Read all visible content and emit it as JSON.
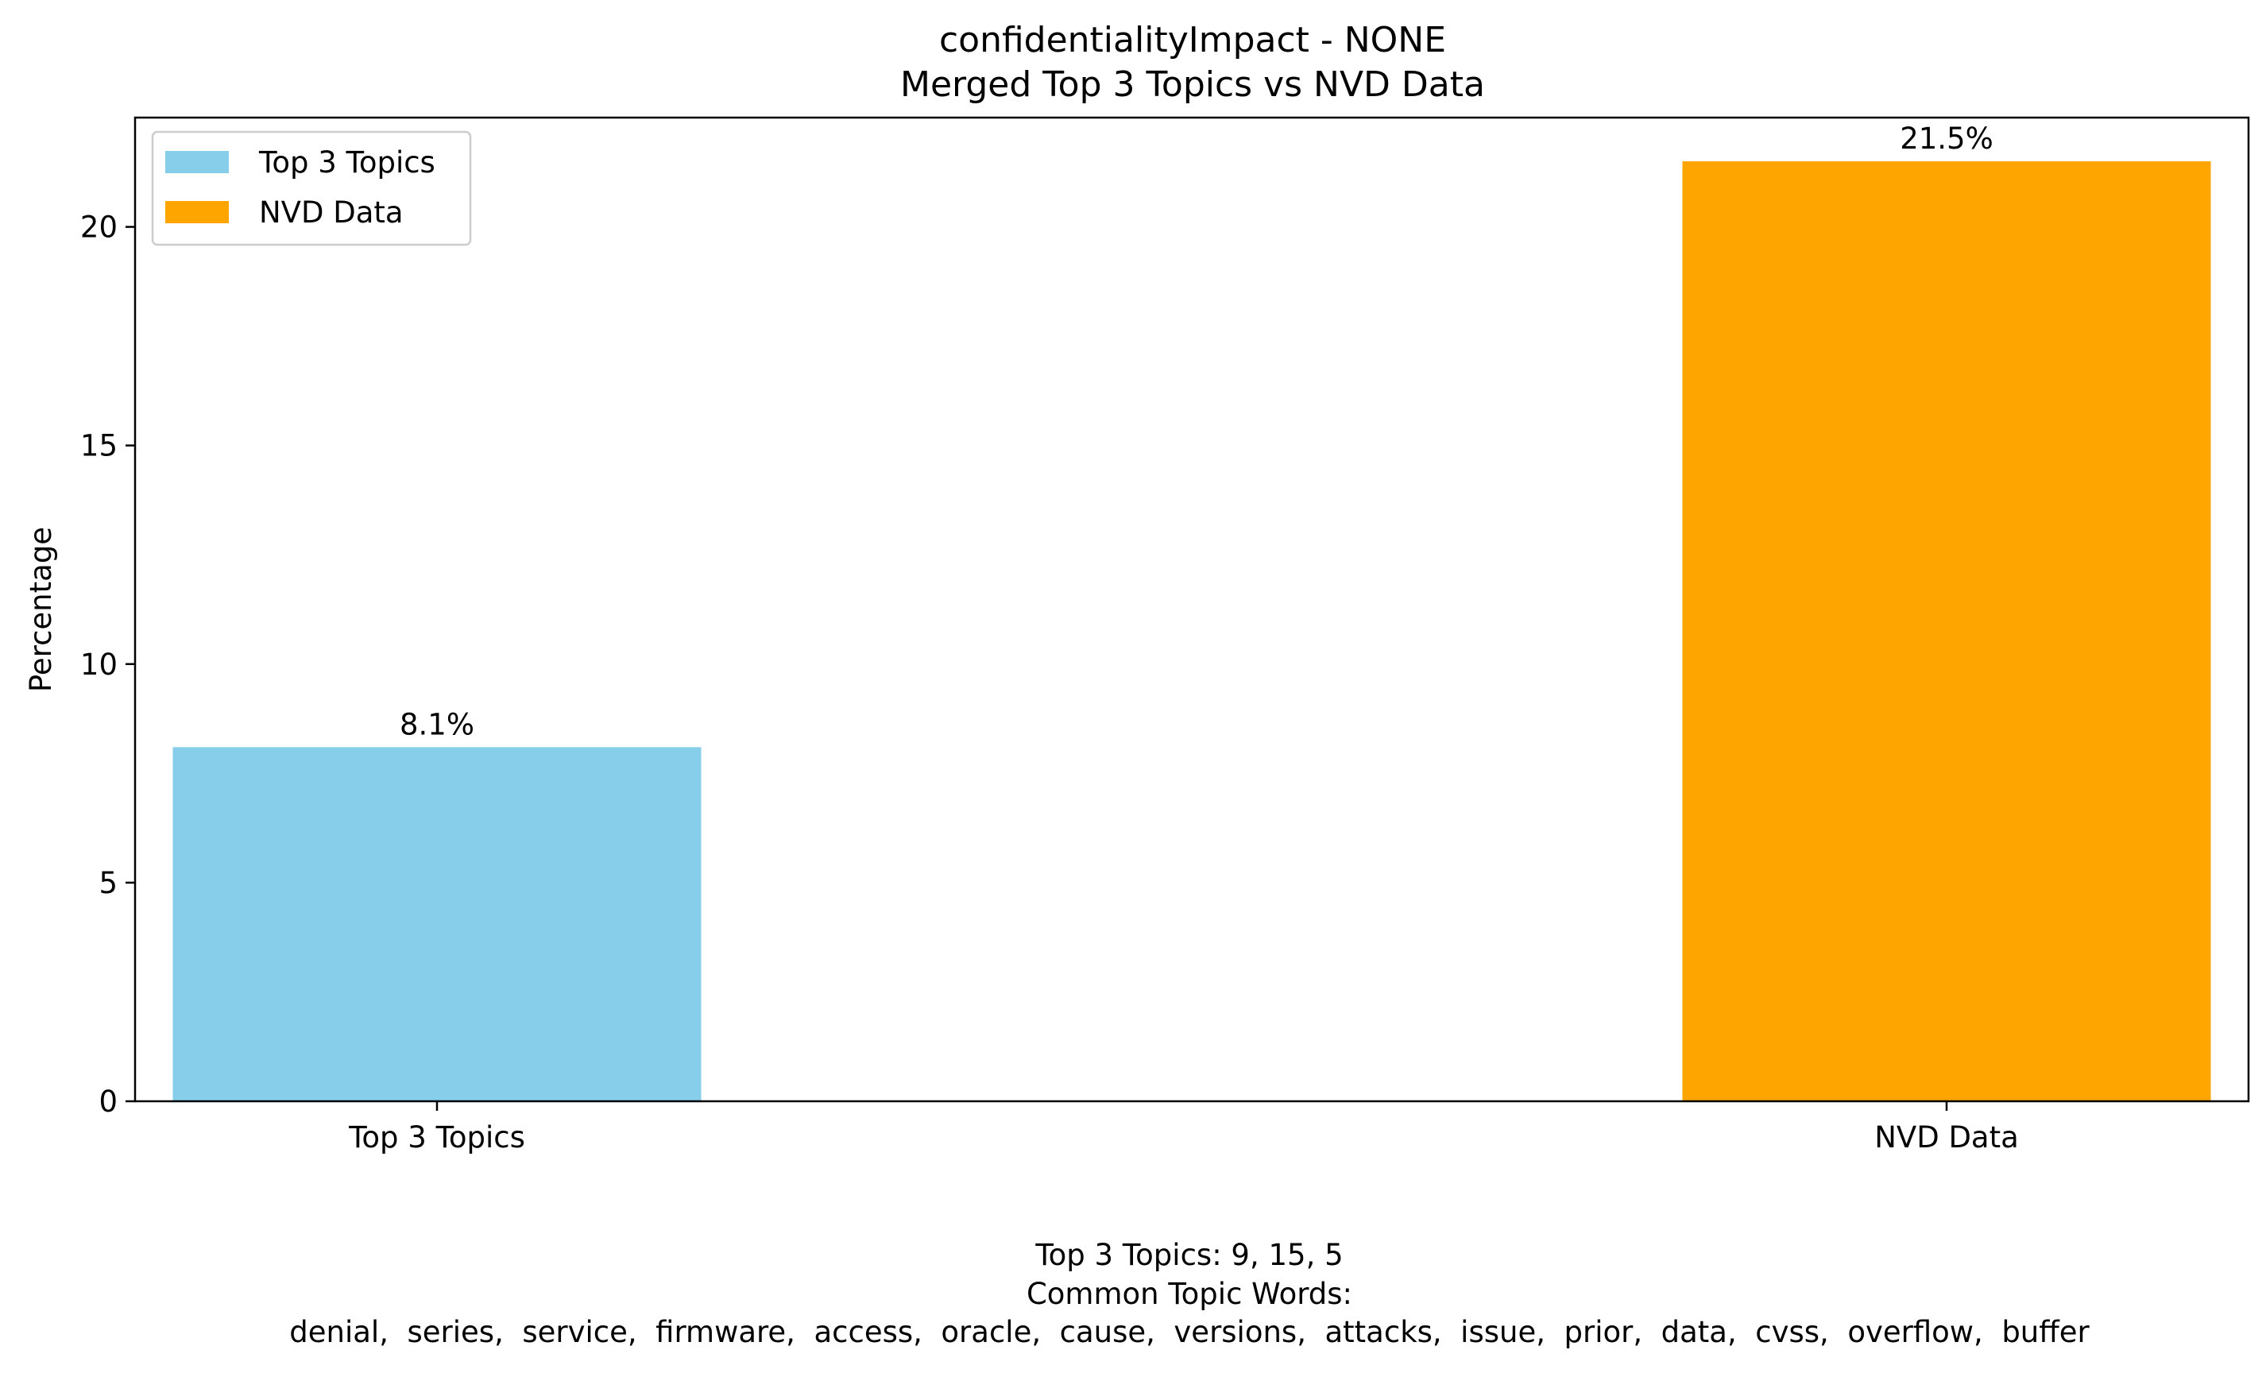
{
  "chart_data": {
    "type": "bar",
    "title": "confidentialityImpact - NONE",
    "subtitle": "Merged Top 3 Topics vs NVD Data",
    "xlabel": "",
    "ylabel": "Percentage",
    "categories": [
      "Top 3 Topics",
      "NVD Data"
    ],
    "values": [
      8.1,
      21.5
    ],
    "data_labels": [
      "8.1%",
      "21.5%"
    ],
    "colors": [
      "#87CEEB",
      "#FFA500"
    ],
    "ylim": [
      0,
      22.5
    ],
    "yticks": [
      0,
      5,
      10,
      15,
      20
    ],
    "ytick_labels": [
      "0",
      "5",
      "10",
      "15",
      "20"
    ],
    "grid": false,
    "legend": {
      "position": "top-left",
      "entries": [
        {
          "label": "Top 3 Topics",
          "color": "#87CEEB"
        },
        {
          "label": "NVD Data",
          "color": "#FFA500"
        }
      ]
    }
  },
  "footer": {
    "line1": "Top 3 Topics: 9, 15, 5",
    "line2": "Common Topic Words:",
    "line3": "denial,  series,  service,  firmware,  access,  oracle,  cause,  versions,  attacks,  issue,  prior,  data,  cvss,  overflow,  buffer"
  }
}
